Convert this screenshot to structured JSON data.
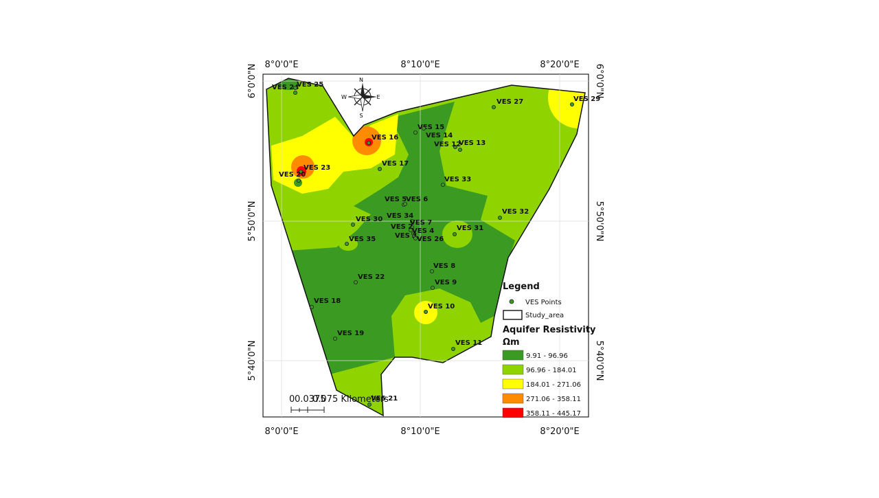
{
  "map": {
    "longitude_labels": [
      "8°0'0\"E",
      "8°10'0\"E",
      "8°20'0\"E"
    ],
    "latitude_labels": [
      "6°0'0\"N",
      "5°50'0\"N",
      "5°40'0\"N"
    ],
    "compass": [
      "N",
      "E",
      "S",
      "W"
    ],
    "ves_points": [
      "VES 24",
      "VES 25",
      "VES 29",
      "VES 27",
      "VES 15",
      "VES 14",
      "VES 16",
      "VES 12",
      "VES 13",
      "VES 17",
      "VES 23",
      "VES 20",
      "VES 33",
      "VES 5",
      "VES 6",
      "VES 32",
      "VES 34",
      "VES 30",
      "VES 7",
      "VES 2",
      "VES 31",
      "VES 4",
      "VES 3",
      "VES 26",
      "VES 35",
      "VES 8",
      "VES 22",
      "VES 9",
      "VES 18",
      "VES 10",
      "VES 19",
      "VES 11",
      "VES 21"
    ],
    "scale_bar": [
      "0",
      "0.0375",
      "0.075 Kilometers"
    ]
  },
  "legend": {
    "title": "Legend",
    "ves_points": "VES Points",
    "study_area": "Study_area",
    "layer_title": "Aquifer Resistivity",
    "unit": "Ωm",
    "classes": [
      {
        "label": "9.91 - 96.96",
        "color": "#3b9a22"
      },
      {
        "label": "96.96 - 184.01",
        "color": "#8fd400"
      },
      {
        "label": "184.01 - 271.06",
        "color": "#ffff00"
      },
      {
        "label": "271.06 - 358.11",
        "color": "#ff8c00"
      },
      {
        "label": "358.11 - 445.17",
        "color": "#ff0000"
      }
    ]
  }
}
